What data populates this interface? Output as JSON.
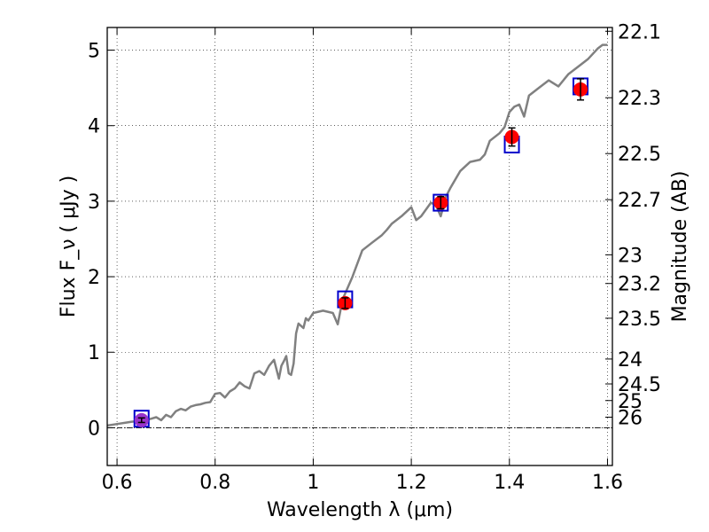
{
  "chart_data": {
    "type": "line",
    "title": "",
    "xlabel": "Wavelength  λ (μm)",
    "ylabel": "Flux  F_ν ( μJy )",
    "ylabel_right": "Magnitude (AB)",
    "xlim": [
      0.58,
      1.61
    ],
    "ylim": [
      -0.5,
      5.3
    ],
    "grid": true,
    "x_ticks": [
      0.6,
      0.8,
      1.0,
      1.2,
      1.4,
      1.6
    ],
    "x_tick_labels": [
      "0.6",
      "0.8",
      "1",
      "1.2",
      "1.4",
      "1.6"
    ],
    "y_ticks": [
      0,
      1,
      2,
      3,
      4,
      5
    ],
    "y_tick_labels": [
      "0",
      "1",
      "2",
      "3",
      "4",
      "5"
    ],
    "right_ticks": [
      {
        "label": "22.1",
        "flux": 5.25
      },
      {
        "label": "22.3",
        "flux": 4.37
      },
      {
        "label": "22.5",
        "flux": 3.63
      },
      {
        "label": "22.7",
        "flux": 3.02
      },
      {
        "label": "23",
        "flux": 2.29
      },
      {
        "label": "23.2",
        "flux": 1.91
      },
      {
        "label": "23.5",
        "flux": 1.45
      },
      {
        "label": "24",
        "flux": 0.91
      },
      {
        "label": "24.5",
        "flux": 0.58
      },
      {
        "label": "25",
        "flux": 0.36
      },
      {
        "label": "26",
        "flux": 0.14
      }
    ],
    "series": [
      {
        "role": "model spectrum",
        "color": "#808080",
        "x": [
          0.58,
          0.6,
          0.62,
          0.63,
          0.65,
          0.67,
          0.68,
          0.69,
          0.7,
          0.71,
          0.72,
          0.73,
          0.74,
          0.75,
          0.76,
          0.77,
          0.78,
          0.79,
          0.8,
          0.81,
          0.82,
          0.83,
          0.84,
          0.85,
          0.86,
          0.87,
          0.88,
          0.89,
          0.9,
          0.91,
          0.92,
          0.93,
          0.935,
          0.94,
          0.945,
          0.95,
          0.955,
          0.96,
          0.965,
          0.97,
          0.98,
          0.985,
          0.99,
          1.0,
          1.02,
          1.04,
          1.05,
          1.06,
          1.07,
          1.08,
          1.1,
          1.12,
          1.14,
          1.15,
          1.16,
          1.18,
          1.2,
          1.21,
          1.22,
          1.24,
          1.25,
          1.26,
          1.27,
          1.28,
          1.3,
          1.32,
          1.34,
          1.35,
          1.36,
          1.38,
          1.39,
          1.4,
          1.41,
          1.42,
          1.43,
          1.44,
          1.46,
          1.48,
          1.5,
          1.52,
          1.54,
          1.56,
          1.58,
          1.59,
          1.6
        ],
        "y": [
          0.03,
          0.05,
          0.07,
          0.08,
          0.09,
          0.12,
          0.14,
          0.1,
          0.17,
          0.14,
          0.22,
          0.25,
          0.23,
          0.28,
          0.3,
          0.31,
          0.33,
          0.34,
          0.45,
          0.46,
          0.4,
          0.48,
          0.52,
          0.6,
          0.55,
          0.52,
          0.72,
          0.75,
          0.7,
          0.82,
          0.9,
          0.65,
          0.82,
          0.88,
          0.95,
          0.72,
          0.7,
          0.85,
          1.25,
          1.38,
          1.32,
          1.45,
          1.42,
          1.52,
          1.55,
          1.52,
          1.37,
          1.7,
          1.85,
          2.0,
          2.35,
          2.45,
          2.55,
          2.62,
          2.7,
          2.8,
          2.92,
          2.75,
          2.8,
          2.98,
          2.95,
          2.8,
          3.05,
          3.18,
          3.4,
          3.52,
          3.55,
          3.62,
          3.8,
          3.9,
          3.98,
          4.18,
          4.25,
          4.28,
          4.12,
          4.4,
          4.5,
          4.6,
          4.52,
          4.68,
          4.78,
          4.88,
          5.02,
          5.07,
          5.07
        ]
      },
      {
        "role": "model photometry",
        "marker": "open square",
        "color": "#0000cc",
        "x": [
          0.65,
          1.065,
          1.26,
          1.405,
          1.545
        ],
        "y": [
          0.12,
          1.7,
          2.98,
          3.75,
          4.52
        ]
      },
      {
        "role": "observed photometry",
        "marker": "filled circle",
        "color": "#ff0000",
        "x": [
          0.65,
          1.065,
          1.26,
          1.405,
          1.545
        ],
        "y": [
          0.1,
          1.65,
          2.98,
          3.85,
          4.48
        ],
        "yerr": [
          0.03,
          0.07,
          0.08,
          0.12,
          0.14
        ]
      }
    ],
    "colors": {
      "spectrum": "#808080",
      "square": "#0000cc",
      "point": "#ff0000",
      "first_point": "#9933cc",
      "grid": "#000000"
    }
  }
}
